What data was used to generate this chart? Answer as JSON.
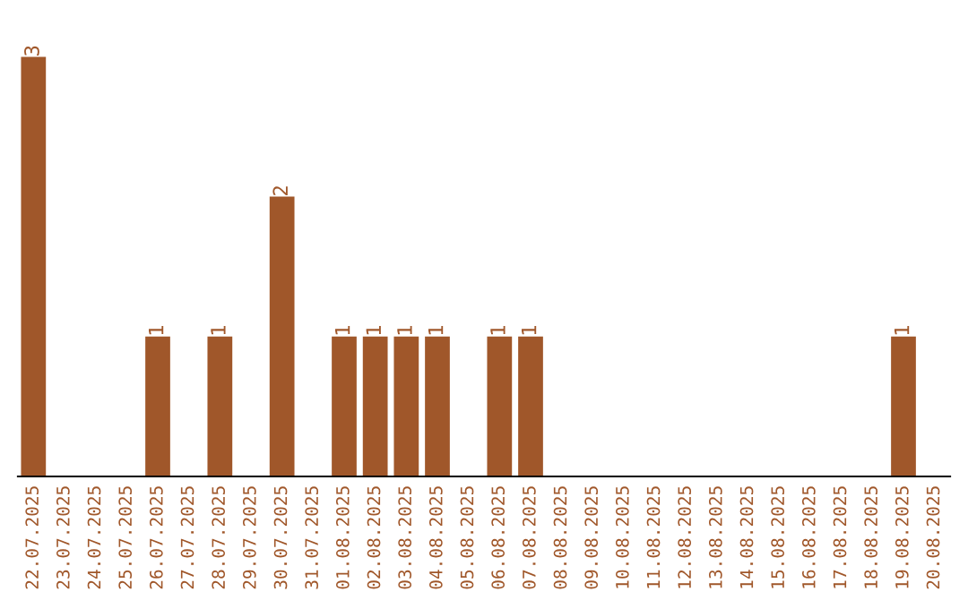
{
  "chart_data": {
    "type": "bar",
    "categories": [
      "22.07.2025",
      "23.07.2025",
      "24.07.2025",
      "25.07.2025",
      "26.07.2025",
      "27.07.2025",
      "28.07.2025",
      "29.07.2025",
      "30.07.2025",
      "31.07.2025",
      "01.08.2025",
      "02.08.2025",
      "03.08.2025",
      "04.08.2025",
      "05.08.2025",
      "06.08.2025",
      "07.08.2025",
      "08.08.2025",
      "09.08.2025",
      "10.08.2025",
      "11.08.2025",
      "12.08.2025",
      "13.08.2025",
      "14.08.2025",
      "15.08.2025",
      "16.08.2025",
      "17.08.2025",
      "18.08.2025",
      "19.08.2025",
      "20.08.2025"
    ],
    "values": [
      3,
      0,
      0,
      0,
      1,
      0,
      1,
      0,
      2,
      0,
      1,
      1,
      1,
      1,
      0,
      1,
      1,
      0,
      0,
      0,
      0,
      0,
      0,
      0,
      0,
      0,
      0,
      0,
      1,
      0
    ],
    "value_labels": [
      "3",
      null,
      null,
      null,
      "1",
      null,
      "1",
      null,
      "2",
      null,
      "1",
      "1",
      "1",
      "1",
      null,
      "1",
      "1",
      null,
      null,
      null,
      null,
      null,
      null,
      null,
      null,
      null,
      null,
      null,
      "1",
      null
    ],
    "color": "#a0572a",
    "tick_labels": "x",
    "grid": false,
    "legend": false
  }
}
